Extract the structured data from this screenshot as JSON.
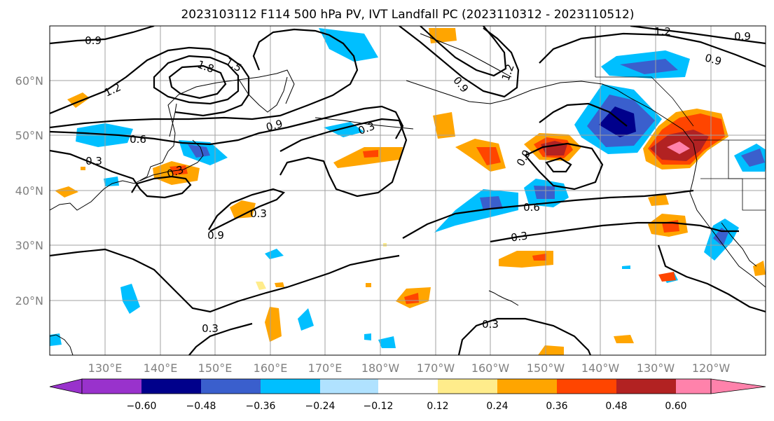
{
  "title": "2023103112 F114 500 hPa PV, IVT Landfall PC (2023110312 - 2023110512)",
  "lat_ticks": [
    "60°N",
    "50°N",
    "40°N",
    "30°N",
    "20°N"
  ],
  "lon_ticks": [
    "130°E",
    "140°E",
    "150°E",
    "160°E",
    "170°E",
    "180°W",
    "170°W",
    "160°W",
    "150°W",
    "140°W",
    "130°W",
    "120°W"
  ],
  "colorbar": {
    "tick_labels": [
      "−0.60",
      "−0.48",
      "−0.36",
      "−0.24",
      "−0.12",
      "0.12",
      "0.24",
      "0.36",
      "0.48",
      "0.60"
    ],
    "colors": [
      "#9932CC",
      "#00008B",
      "#3A5FCD",
      "#00BFFF",
      "#B0E2FF",
      "#FFFFFF",
      "#FFEC8B",
      "#FFA500",
      "#FF4500",
      "#B22222",
      "#FF82AB"
    ]
  },
  "contour_labels": [
    "0.9",
    "1.2",
    "1.8",
    "1.5",
    "0.9",
    "0.6",
    "0.3",
    "0.3",
    "0.3",
    "0.9",
    "0.3",
    "0.6",
    "0.3",
    "0.3",
    "0.3",
    "1.2",
    "0.9",
    "0.9",
    "1.2",
    "0.9",
    "0.9"
  ]
}
